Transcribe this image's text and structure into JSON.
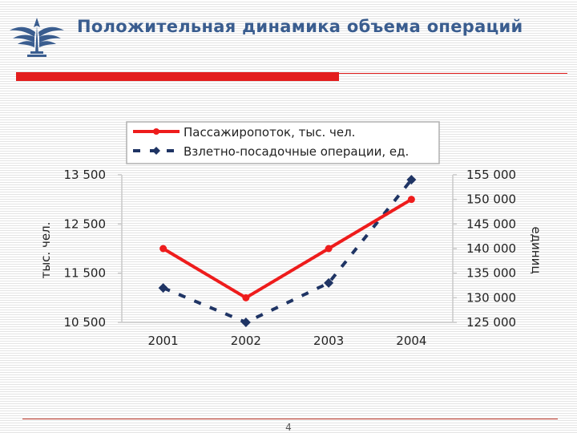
{
  "title": "Положительная динамика объема операций",
  "page_number": "4",
  "colors": {
    "accent_red": "#e31d1d",
    "title_blue": "#3a5d8f",
    "series_red": "#ee1c1c",
    "series_navy": "#1f3464"
  },
  "chart_data": {
    "type": "line",
    "categories": [
      "2001",
      "2002",
      "2003",
      "2004"
    ],
    "series": [
      {
        "name": "Пассажиропоток, тыс. чел.",
        "axis": "left",
        "style": "solid-circle",
        "values": [
          12000,
          11000,
          12000,
          13000
        ]
      },
      {
        "name": "Взлетно-посадочные операции, ед.",
        "axis": "right",
        "style": "dashed-diamond",
        "values": [
          132000,
          125000,
          133000,
          154000
        ]
      }
    ],
    "ylabel_left": "тыс. чел.",
    "ylabel_right": "единиц",
    "ylim_left": [
      10500,
      13500
    ],
    "ylim_right": [
      125000,
      155000
    ],
    "yticks_left": [
      "13 500",
      "12 500",
      "11 500",
      "10 500"
    ],
    "yticks_right": [
      "155 000",
      "150 000",
      "145 000",
      "140 000",
      "135 000",
      "130 000",
      "125 000"
    ],
    "legend_position": "top",
    "grid": false
  }
}
